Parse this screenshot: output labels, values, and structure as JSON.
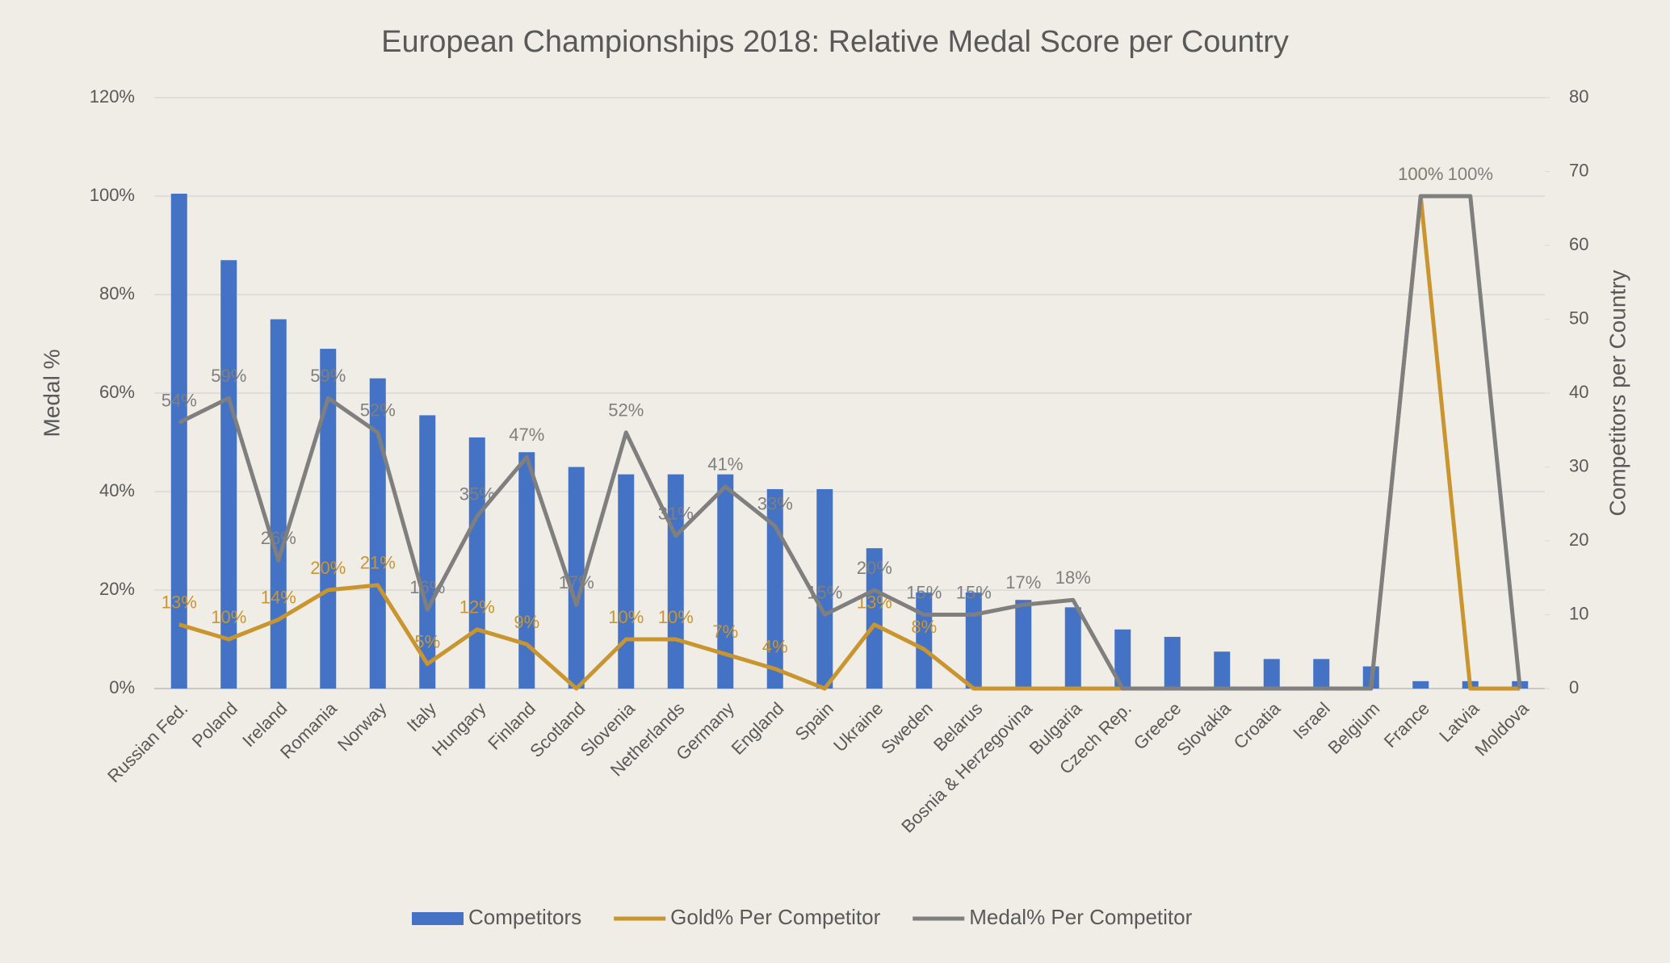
{
  "chart_data": {
    "type": "bar-line",
    "title": "European Championships 2018: Relative Medal Score per Country",
    "ylabel": "Medal %",
    "y2label": "Competitors per Country",
    "categories": [
      "Russian Fed.",
      "Poland",
      "Ireland",
      "Romania",
      "Norway",
      "Italy",
      "Hungary",
      "Finland",
      "Scotland",
      "Slovenia",
      "Netherlands",
      "Germany",
      "England",
      "Spain",
      "Ukraine",
      "Sweden",
      "Belarus",
      "Bosnia & Herzegovina",
      "Bulgaria",
      "Czech Rep.",
      "Greece",
      "Slovakia",
      "Croatia",
      "Israel",
      "Belgium",
      "France",
      "Latvia",
      "Moldova"
    ],
    "ylim": [
      0,
      120
    ],
    "yticks": [
      {
        "value": 0,
        "label": "0%"
      },
      {
        "value": 20,
        "label": "20%"
      },
      {
        "value": 40,
        "label": "40%"
      },
      {
        "value": 60,
        "label": "60%"
      },
      {
        "value": 80,
        "label": "80%"
      },
      {
        "value": 100,
        "label": "100%"
      },
      {
        "value": 120,
        "label": "120%"
      }
    ],
    "y2lim": [
      0,
      80
    ],
    "y2ticks": [
      0,
      10,
      20,
      30,
      40,
      50,
      60,
      70,
      80
    ],
    "grid": true,
    "legend": "bottom",
    "series": [
      {
        "name": "Competitors",
        "type": "bar",
        "axis": "y2",
        "color": "#4472c4",
        "values": [
          67,
          58,
          50,
          46,
          42,
          37,
          34,
          32,
          30,
          29,
          29,
          29,
          27,
          27,
          19,
          13,
          13,
          12,
          11,
          8,
          7,
          5,
          4,
          4,
          3,
          1,
          1,
          1
        ]
      },
      {
        "name": "Gold% Per Competitor",
        "type": "line",
        "color": "#c9952f",
        "values": [
          13,
          10,
          14,
          20,
          21,
          5,
          12,
          9,
          0,
          10,
          10,
          7,
          4,
          0,
          13,
          8,
          0,
          0,
          0,
          0,
          0,
          0,
          0,
          0,
          0,
          100,
          0,
          0
        ],
        "value_labels": [
          "13%",
          "10%",
          "14%",
          "20%",
          "21%",
          "5%",
          "12%",
          "9%",
          null,
          "10%",
          "10%",
          "7%",
          "4%",
          null,
          "13%",
          "8%",
          null,
          null,
          null,
          null,
          null,
          null,
          null,
          null,
          null,
          "100%",
          null,
          null
        ]
      },
      {
        "name": "Medal% Per Competitor",
        "type": "line",
        "color": "#7f7f7f",
        "values": [
          54,
          59,
          26,
          59,
          52,
          16,
          35,
          47,
          17,
          52,
          31,
          41,
          33,
          15,
          20,
          15,
          15,
          17,
          18,
          0,
          0,
          0,
          0,
          0,
          0,
          100,
          100,
          0
        ],
        "value_labels": [
          "54%",
          "59%",
          "26%",
          "59%",
          "52%",
          "16%",
          "35%",
          "47%",
          "17%",
          "52%",
          "31%",
          "41%",
          "33%",
          "15%",
          "20%",
          "15%",
          "15%",
          "17%",
          "18%",
          null,
          null,
          null,
          null,
          null,
          null,
          "100%",
          "100%",
          null
        ]
      }
    ]
  }
}
